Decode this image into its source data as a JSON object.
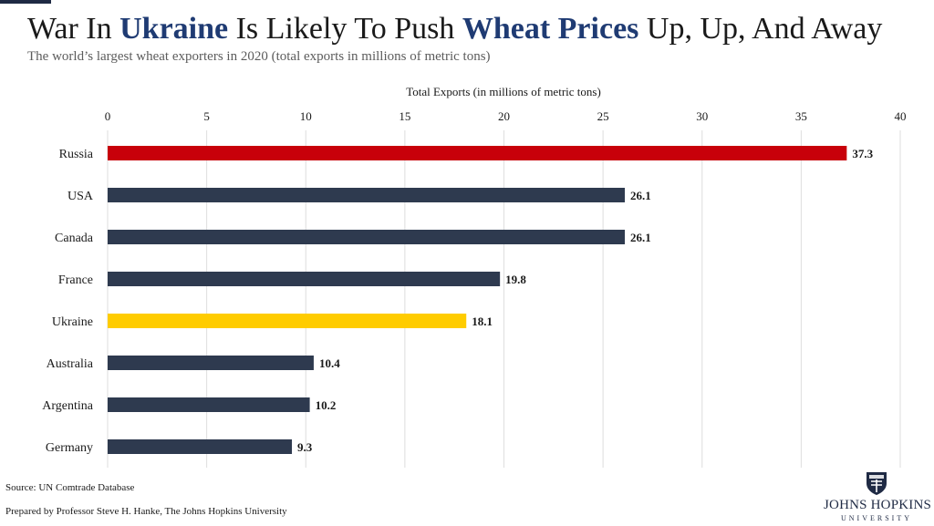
{
  "header": {
    "title_part1": "War In ",
    "title_highlight1": "Ukraine",
    "title_part2": " Is Likely To Push ",
    "title_highlight2": "Wheat Prices",
    "title_part3": " Up, Up, And Away",
    "subtitle": "The world’s largest wheat exporters in 2020 (total exports in millions of metric tons)"
  },
  "chart_data": {
    "type": "bar",
    "orientation": "horizontal",
    "xlabel": "Total Exports (in millions of metric tons)",
    "ylabel": "",
    "xlim": [
      0,
      40
    ],
    "x_ticks": [
      0,
      5,
      10,
      15,
      20,
      25,
      30,
      35,
      40
    ],
    "x_axis_position": "top",
    "grid": true,
    "categories": [
      "Russia",
      "USA",
      "Canada",
      "France",
      "Ukraine",
      "Australia",
      "Argentina",
      "Germany"
    ],
    "values": [
      37.3,
      26.1,
      26.1,
      19.8,
      18.1,
      10.4,
      10.2,
      9.3
    ],
    "value_labels": [
      "37.3",
      "26.1",
      "26.1",
      "19.8",
      "18.1",
      "10.4",
      "10.2",
      "9.3"
    ],
    "colors": [
      "#c8000a",
      "#2e3a4f",
      "#2e3a4f",
      "#2e3a4f",
      "#ffcc00",
      "#2e3a4f",
      "#2e3a4f",
      "#2e3a4f"
    ]
  },
  "footer": {
    "source": "Source: UN Comtrade Database",
    "prepared_by": "Prepared by Professor Steve H. Hanke, The Johns Hopkins University"
  },
  "logo": {
    "name": "JOHNS HOPKINS",
    "sub": "UNIVERSITY",
    "color": "#1f2a44",
    "icon": "university-shield-icon"
  }
}
